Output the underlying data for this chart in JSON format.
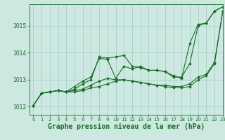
{
  "bg_color": "#cce8e0",
  "grid_color": "#a8cfc8",
  "line_color": "#1a6e2a",
  "xlabel": "Graphe pression niveau de la mer (hPa)",
  "xlabel_fontsize": 7,
  "xlim": [
    -0.5,
    23
  ],
  "ylim": [
    1011.7,
    1015.8
  ],
  "yticks": [
    1012,
    1013,
    1014,
    1015
  ],
  "xticks": [
    0,
    1,
    2,
    3,
    4,
    5,
    6,
    7,
    8,
    9,
    10,
    11,
    12,
    13,
    14,
    15,
    16,
    17,
    18,
    19,
    20,
    21,
    22,
    23
  ],
  "series": [
    [
      1012.05,
      1012.5,
      1012.55,
      1012.6,
      1012.55,
      1012.65,
      1012.85,
      1013.0,
      1013.85,
      1013.8,
      1013.85,
      1013.9,
      1013.5,
      1013.45,
      1013.35,
      1013.35,
      1013.3,
      1013.15,
      1013.05,
      1014.35,
      1015.05,
      1015.1,
      1015.55,
      1015.7
    ],
    [
      1012.05,
      1012.5,
      1012.55,
      1012.6,
      1012.55,
      1012.75,
      1012.95,
      1013.1,
      1013.8,
      1013.75,
      1013.05,
      1013.5,
      1013.4,
      1013.5,
      1013.35,
      1013.35,
      1013.3,
      1013.1,
      1013.1,
      1013.6,
      1015.0,
      1015.1,
      1015.55,
      1015.7
    ],
    [
      1012.05,
      1012.5,
      1012.55,
      1012.6,
      1012.55,
      1012.6,
      1012.65,
      1012.8,
      1012.95,
      1013.05,
      1013.0,
      1013.0,
      1012.95,
      1012.9,
      1012.85,
      1012.8,
      1012.8,
      1012.75,
      1012.75,
      1012.85,
      1013.1,
      1013.2,
      1013.65,
      1015.55
    ],
    [
      1012.05,
      1012.5,
      1012.55,
      1012.6,
      1012.55,
      1012.55,
      1012.6,
      1012.7,
      1012.75,
      1012.85,
      1012.95,
      1013.0,
      1012.95,
      1012.9,
      1012.85,
      1012.8,
      1012.75,
      1012.7,
      1012.7,
      1012.75,
      1013.0,
      1013.15,
      1013.6,
      1015.55
    ]
  ]
}
